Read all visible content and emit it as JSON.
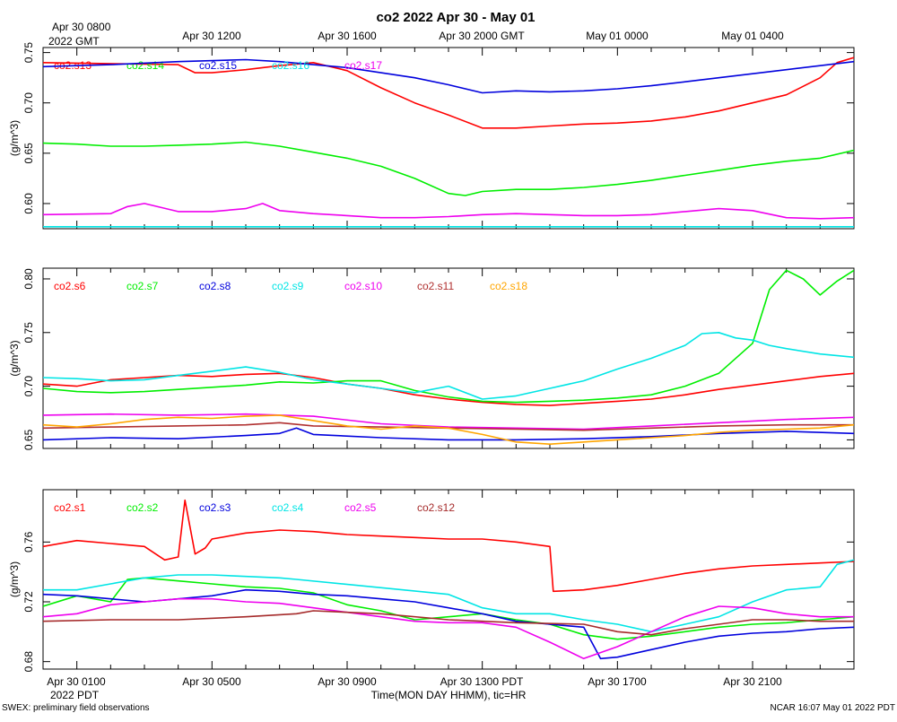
{
  "title": "co2 2022 Apr 30 - May 01",
  "top_axis": {
    "first_label_line1": "Apr 30 0800",
    "first_label_line2": "2022 GMT",
    "labels": [
      "Apr 30 1200",
      "Apr 30 1600",
      "Apr 30 2000 GMT",
      "May 01 0000",
      "May 01 0400"
    ]
  },
  "bottom_axis": {
    "labels": [
      "Apr 30 0100",
      "Apr 30 0500",
      "Apr 30 0900",
      "Apr 30 1300 PDT",
      "Apr 30 1700",
      "Apr 30 2100"
    ],
    "year_label": "2022 PDT",
    "title": "Time(MON DAY HHMM), tic=HR"
  },
  "footer": {
    "left": "SWEX: preliminary field observations",
    "right": "NCAR 16:07 May 01 2022 PDT"
  },
  "chart_data": [
    {
      "type": "line",
      "panel": "top",
      "ylabel": "(g/m^3)",
      "ylim": [
        0.575,
        0.755
      ],
      "yticks": [
        0.6,
        0.65,
        0.7,
        0.75
      ],
      "ytick_labels": [
        "0.60",
        "0.65",
        "0.70",
        "0.75"
      ],
      "x_units": "hours since Apr 30 0000 PDT",
      "xlim": [
        0.0,
        24.0
      ],
      "series": [
        {
          "name": "co2.s13",
          "color": "#ff0000",
          "x": [
            0,
            4,
            4.5,
            5,
            6,
            7,
            8,
            9,
            10,
            11,
            12,
            13,
            14,
            15,
            16,
            17,
            18,
            19,
            20,
            21,
            22,
            23,
            23.5,
            24
          ],
          "y": [
            0.74,
            0.738,
            0.73,
            0.73,
            0.733,
            0.737,
            0.74,
            0.732,
            0.715,
            0.7,
            0.688,
            0.675,
            0.675,
            0.677,
            0.679,
            0.68,
            0.682,
            0.686,
            0.692,
            0.7,
            0.708,
            0.725,
            0.74,
            0.745
          ]
        },
        {
          "name": "co2.s14",
          "color": "#00ee00",
          "x": [
            0,
            1,
            2,
            3,
            4,
            5,
            6,
            7,
            8,
            9,
            10,
            11,
            12,
            12.5,
            13,
            14,
            15,
            16,
            17,
            18,
            19,
            20,
            21,
            22,
            23,
            24
          ],
          "y": [
            0.66,
            0.659,
            0.657,
            0.657,
            0.658,
            0.659,
            0.661,
            0.657,
            0.651,
            0.645,
            0.637,
            0.625,
            0.61,
            0.608,
            0.612,
            0.614,
            0.614,
            0.616,
            0.619,
            0.623,
            0.628,
            0.633,
            0.638,
            0.642,
            0.645,
            0.653
          ]
        },
        {
          "name": "co2.s15",
          "color": "#0000dd",
          "x": [
            0,
            2,
            4,
            6,
            7,
            8,
            9,
            10,
            11,
            12,
            13,
            14,
            15,
            16,
            17,
            18,
            19,
            20,
            21,
            22,
            23,
            24
          ],
          "y": [
            0.736,
            0.738,
            0.741,
            0.743,
            0.741,
            0.738,
            0.735,
            0.73,
            0.725,
            0.718,
            0.71,
            0.712,
            0.711,
            0.712,
            0.714,
            0.717,
            0.721,
            0.725,
            0.729,
            0.733,
            0.737,
            0.741
          ]
        },
        {
          "name": "co2.s16",
          "color": "#00e5e5",
          "x": [
            0,
            24
          ],
          "y": [
            0.577,
            0.577
          ]
        },
        {
          "name": "co2.s17",
          "color": "#ee00ee",
          "x": [
            0,
            2,
            2.5,
            3,
            4,
            5,
            6,
            6.5,
            7,
            8,
            9,
            10,
            11,
            12,
            13,
            14,
            15,
            16,
            17,
            18,
            19,
            20,
            21,
            22,
            23,
            24
          ],
          "y": [
            0.589,
            0.59,
            0.597,
            0.6,
            0.592,
            0.592,
            0.595,
            0.6,
            0.593,
            0.59,
            0.588,
            0.586,
            0.586,
            0.587,
            0.589,
            0.59,
            0.589,
            0.588,
            0.588,
            0.589,
            0.592,
            0.595,
            0.593,
            0.586,
            0.585,
            0.586
          ]
        }
      ]
    },
    {
      "type": "line",
      "panel": "middle",
      "ylabel": "(g/m^3)",
      "ylim": [
        0.642,
        0.81
      ],
      "yticks": [
        0.65,
        0.7,
        0.75,
        0.8
      ],
      "ytick_labels": [
        "0.65",
        "0.70",
        "0.75",
        "0.80"
      ],
      "x_units": "hours since Apr 30 0000 PDT",
      "xlim": [
        0.0,
        24.0
      ],
      "series": [
        {
          "name": "co2.s6",
          "color": "#ff0000",
          "x": [
            0,
            1,
            2,
            3,
            4,
            5,
            6,
            7,
            8,
            9,
            10,
            11,
            12,
            13,
            14,
            15,
            16,
            17,
            18,
            19,
            20,
            21,
            22,
            23,
            24
          ],
          "y": [
            0.702,
            0.7,
            0.706,
            0.708,
            0.71,
            0.709,
            0.711,
            0.712,
            0.708,
            0.702,
            0.698,
            0.692,
            0.688,
            0.685,
            0.683,
            0.682,
            0.684,
            0.686,
            0.688,
            0.692,
            0.697,
            0.701,
            0.705,
            0.709,
            0.712
          ]
        },
        {
          "name": "co2.s7",
          "color": "#00ee00",
          "x": [
            0,
            1,
            2,
            3,
            4,
            5,
            6,
            7,
            8,
            9,
            10,
            11,
            12,
            13,
            14,
            15,
            16,
            17,
            18,
            19,
            20,
            21,
            21.5,
            22,
            22.5,
            23,
            23.5,
            24
          ],
          "y": [
            0.698,
            0.695,
            0.694,
            0.695,
            0.697,
            0.699,
            0.701,
            0.704,
            0.703,
            0.705,
            0.705,
            0.696,
            0.69,
            0.686,
            0.685,
            0.686,
            0.687,
            0.689,
            0.692,
            0.7,
            0.712,
            0.74,
            0.79,
            0.808,
            0.8,
            0.785,
            0.798,
            0.808
          ]
        },
        {
          "name": "co2.s8",
          "color": "#0000dd",
          "x": [
            0,
            2,
            4,
            6,
            7,
            7.5,
            8,
            10,
            12,
            14,
            16,
            18,
            20,
            22,
            24
          ],
          "y": [
            0.65,
            0.652,
            0.651,
            0.654,
            0.656,
            0.661,
            0.655,
            0.652,
            0.65,
            0.65,
            0.651,
            0.653,
            0.656,
            0.658,
            0.656
          ]
        },
        {
          "name": "co2.s9",
          "color": "#00e5e5",
          "x": [
            0,
            1,
            2,
            3,
            4,
            5,
            6,
            7,
            8,
            9,
            10,
            11,
            12,
            13,
            14,
            15,
            16,
            17,
            18,
            19,
            19.5,
            20,
            20.5,
            21,
            21.5,
            22,
            23,
            24
          ],
          "y": [
            0.708,
            0.707,
            0.705,
            0.706,
            0.71,
            0.714,
            0.718,
            0.713,
            0.706,
            0.702,
            0.698,
            0.694,
            0.7,
            0.688,
            0.691,
            0.698,
            0.705,
            0.716,
            0.726,
            0.738,
            0.749,
            0.75,
            0.745,
            0.743,
            0.738,
            0.735,
            0.73,
            0.727
          ]
        },
        {
          "name": "co2.s10",
          "color": "#ee00ee",
          "x": [
            0,
            2,
            4,
            6,
            8,
            10,
            12,
            14,
            16,
            18,
            20,
            22,
            24
          ],
          "y": [
            0.673,
            0.674,
            0.673,
            0.674,
            0.672,
            0.665,
            0.662,
            0.661,
            0.66,
            0.663,
            0.666,
            0.669,
            0.671
          ]
        },
        {
          "name": "co2.s11",
          "color": "#b03030",
          "x": [
            0,
            2,
            4,
            6,
            7,
            8,
            10,
            12,
            14,
            16,
            18,
            20,
            22,
            24
          ],
          "y": [
            0.661,
            0.662,
            0.663,
            0.664,
            0.666,
            0.663,
            0.662,
            0.661,
            0.66,
            0.659,
            0.661,
            0.663,
            0.664,
            0.664
          ]
        },
        {
          "name": "co2.s18",
          "color": "#ffa500",
          "x": [
            0,
            1,
            2,
            3,
            4,
            5,
            6,
            7,
            8,
            9,
            10,
            11,
            12,
            13,
            14,
            15,
            16,
            17,
            18,
            19,
            20,
            21,
            22,
            23,
            24
          ],
          "y": [
            0.664,
            0.662,
            0.665,
            0.669,
            0.671,
            0.67,
            0.672,
            0.673,
            0.668,
            0.663,
            0.66,
            0.663,
            0.661,
            0.655,
            0.648,
            0.646,
            0.648,
            0.65,
            0.652,
            0.654,
            0.657,
            0.659,
            0.66,
            0.661,
            0.664
          ]
        }
      ]
    },
    {
      "type": "line",
      "panel": "bottom",
      "ylabel": "(g/m^3)",
      "ylim": [
        0.675,
        0.795
      ],
      "yticks": [
        0.68,
        0.72,
        0.76
      ],
      "ytick_labels": [
        "0.68",
        "0.72",
        "0.76"
      ],
      "x_units": "hours since Apr 30 0000 PDT",
      "xlim": [
        0.0,
        24.0
      ],
      "series": [
        {
          "name": "co2.s1",
          "color": "#ff0000",
          "x": [
            0,
            1,
            2,
            3,
            3.6,
            4,
            4.2,
            4.5,
            4.8,
            5,
            6,
            7,
            8,
            9,
            10,
            11,
            12,
            13,
            14,
            15,
            15.1,
            16,
            17,
            18,
            19,
            20,
            21,
            22,
            23,
            24
          ],
          "y": [
            0.757,
            0.761,
            0.759,
            0.757,
            0.748,
            0.75,
            0.788,
            0.752,
            0.756,
            0.762,
            0.766,
            0.768,
            0.767,
            0.765,
            0.764,
            0.763,
            0.762,
            0.762,
            0.76,
            0.757,
            0.727,
            0.728,
            0.731,
            0.735,
            0.739,
            0.742,
            0.744,
            0.745,
            0.746,
            0.747
          ]
        },
        {
          "name": "co2.s2",
          "color": "#00ee00",
          "x": [
            0,
            1,
            2,
            2.5,
            3,
            4,
            5,
            6,
            7,
            8,
            9,
            10,
            11,
            12,
            13,
            14,
            15,
            16,
            17,
            18,
            19,
            20,
            21,
            22,
            23,
            24
          ],
          "y": [
            0.717,
            0.724,
            0.72,
            0.735,
            0.736,
            0.734,
            0.732,
            0.73,
            0.729,
            0.726,
            0.718,
            0.714,
            0.708,
            0.71,
            0.712,
            0.708,
            0.705,
            0.698,
            0.695,
            0.697,
            0.7,
            0.703,
            0.705,
            0.706,
            0.708,
            0.71
          ]
        },
        {
          "name": "co2.s3",
          "color": "#0000dd",
          "x": [
            0,
            1,
            2,
            3,
            4,
            5,
            6,
            7,
            8,
            9,
            10,
            11,
            12,
            13,
            14,
            15,
            16,
            16.5,
            17,
            18,
            19,
            20,
            21,
            22,
            23,
            24
          ],
          "y": [
            0.725,
            0.724,
            0.722,
            0.72,
            0.722,
            0.724,
            0.728,
            0.727,
            0.725,
            0.724,
            0.722,
            0.72,
            0.716,
            0.712,
            0.707,
            0.705,
            0.703,
            0.682,
            0.683,
            0.688,
            0.693,
            0.697,
            0.699,
            0.7,
            0.702,
            0.703
          ]
        },
        {
          "name": "co2.s4",
          "color": "#00e5e5",
          "x": [
            0,
            1,
            2,
            3,
            4,
            5,
            6,
            7,
            7.5,
            12,
            13,
            14,
            15,
            16,
            17,
            18,
            19,
            20,
            21,
            22,
            23,
            23.5,
            24
          ],
          "y": [
            0.728,
            0.728,
            0.732,
            0.736,
            0.738,
            0.738,
            0.737,
            0.736,
            0.735,
            0.725,
            0.716,
            0.712,
            0.712,
            0.708,
            0.705,
            0.7,
            0.705,
            0.71,
            0.72,
            0.728,
            0.73,
            0.745,
            0.748
          ]
        },
        {
          "name": "co2.s5",
          "color": "#ee00ee",
          "x": [
            0,
            1,
            2,
            3,
            4,
            5,
            6,
            7,
            8,
            9,
            10,
            11,
            12,
            13,
            14,
            15,
            16,
            17,
            18,
            19,
            20,
            21,
            22,
            23,
            24
          ],
          "y": [
            0.71,
            0.712,
            0.718,
            0.72,
            0.722,
            0.722,
            0.72,
            0.719,
            0.716,
            0.713,
            0.71,
            0.707,
            0.706,
            0.706,
            0.703,
            0.693,
            0.682,
            0.69,
            0.7,
            0.71,
            0.717,
            0.716,
            0.712,
            0.71,
            0.71
          ]
        },
        {
          "name": "co2.s12",
          "color": "#a52a2a",
          "x": [
            0,
            2,
            4,
            6,
            7.5,
            8,
            10,
            12,
            14,
            16,
            17,
            18,
            19,
            20,
            21,
            22,
            23,
            24
          ],
          "y": [
            0.707,
            0.708,
            0.708,
            0.71,
            0.712,
            0.714,
            0.712,
            0.708,
            0.706,
            0.705,
            0.7,
            0.698,
            0.702,
            0.705,
            0.708,
            0.708,
            0.707,
            0.707
          ]
        }
      ]
    }
  ]
}
